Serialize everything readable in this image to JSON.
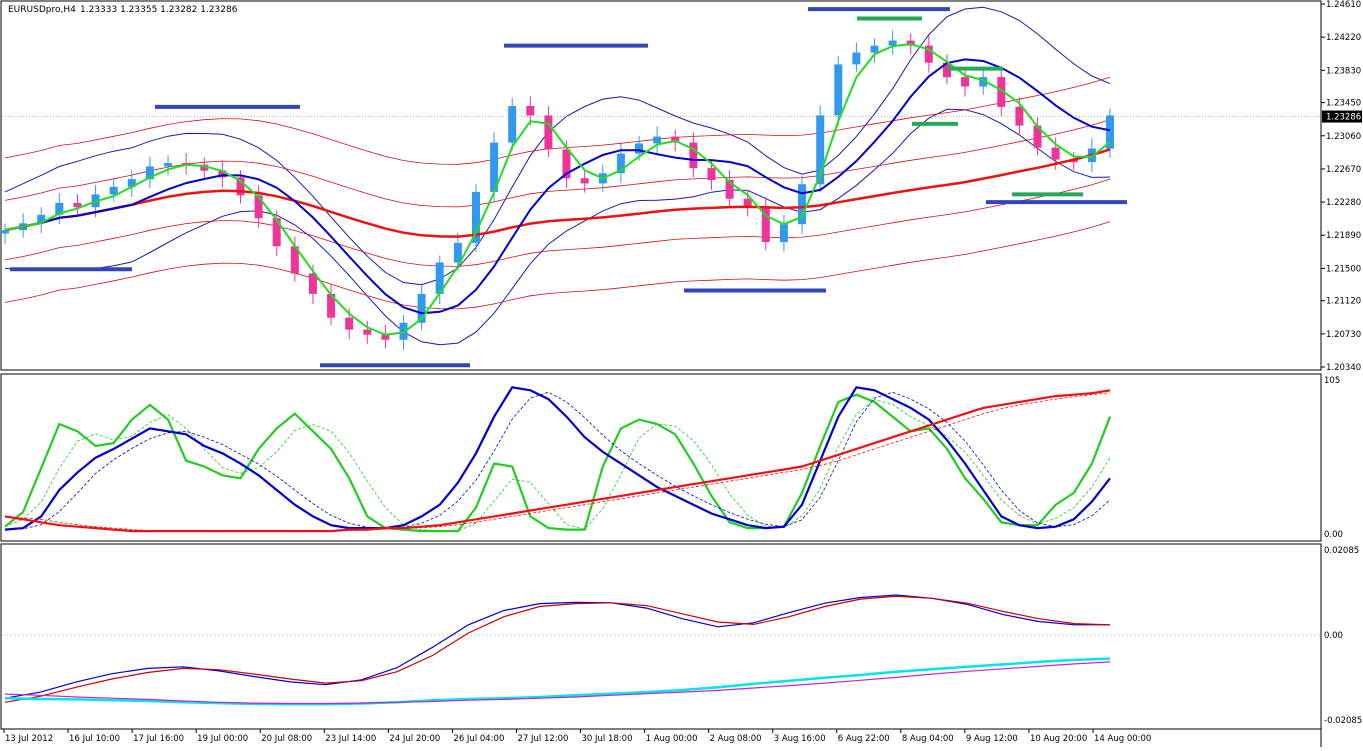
{
  "header": {
    "symbol": "EURUSDpro,H4",
    "ohlc": "1.23333 1.23355 1.23282 1.23286"
  },
  "chart_data": [
    {
      "type": "candlestick",
      "panel": "main",
      "y_ticks": [
        "1.24610",
        "1.24220",
        "1.23830",
        "1.23450",
        "1.23060",
        "1.22670",
        "1.22280",
        "1.21890",
        "1.21500",
        "1.21120",
        "1.20730",
        "1.20340"
      ],
      "ylim": [
        1.2034,
        1.2461
      ],
      "current_price": "1.23286",
      "close_path": [
        1.2195,
        1.2203,
        1.2213,
        1.2227,
        1.2222,
        1.2237,
        1.2246,
        1.2255,
        1.227,
        1.2274,
        1.2272,
        1.2265,
        1.2257,
        1.2236,
        1.2209,
        1.2176,
        1.2144,
        1.212,
        1.2092,
        1.2078,
        1.2072,
        1.2066,
        1.2086,
        1.212,
        1.2157,
        1.218,
        1.224,
        1.2298,
        1.2341,
        1.233,
        1.229,
        1.2256,
        1.225,
        1.2262,
        1.2285,
        1.2297,
        1.2305,
        1.2298,
        1.2268,
        1.2254,
        1.2232,
        1.2223,
        1.2181,
        1.2202,
        1.2249,
        1.233,
        1.239,
        1.2404,
        1.2412,
        1.2418,
        1.2412,
        1.2392,
        1.2375,
        1.2364,
        1.2375,
        1.234,
        1.2318,
        1.2292,
        1.2278,
        1.2275,
        1.2291,
        1.233
      ],
      "up_color": "#3399ee",
      "down_color": "#ee3399",
      "overlays": [
        {
          "name": "MA slow",
          "color": "#ee1111"
        },
        {
          "name": "MA mid",
          "color": "#0000cc"
        },
        {
          "name": "MA fast",
          "color": "#22dd22"
        }
      ]
    },
    {
      "type": "line",
      "panel": "oscillator",
      "y_ticks": [
        "105",
        "0.00"
      ],
      "ylim": [
        0,
        105
      ],
      "series": [
        {
          "color": "#22cc22",
          "values": [
            5,
            15,
            45,
            75,
            70,
            60,
            62,
            78,
            88,
            78,
            50,
            46,
            40,
            38,
            58,
            72,
            82,
            70,
            58,
            38,
            12,
            4,
            3,
            2,
            2,
            2,
            18,
            48,
            46,
            12,
            4,
            3,
            3,
            46,
            72,
            78,
            75,
            68,
            48,
            26,
            8,
            4,
            4,
            5,
            28,
            60,
            90,
            95,
            90,
            80,
            70,
            72,
            58,
            38,
            24,
            8,
            6,
            6,
            20,
            28,
            48,
            80
          ]
        },
        {
          "color": "#0000cc",
          "values": [
            3,
            4,
            12,
            30,
            42,
            52,
            58,
            65,
            72,
            70,
            68,
            60,
            55,
            48,
            40,
            30,
            20,
            12,
            6,
            4,
            4,
            4,
            6,
            12,
            20,
            35,
            55,
            80,
            100,
            98,
            92,
            80,
            66,
            56,
            48,
            40,
            32,
            26,
            20,
            14,
            10,
            6,
            4,
            5,
            20,
            50,
            80,
            100,
            98,
            92,
            86,
            78,
            64,
            48,
            30,
            12,
            6,
            4,
            5,
            10,
            22,
            38
          ]
        },
        {
          "color": "#ee1111",
          "values": [
            12,
            10,
            8,
            6,
            5,
            4,
            3,
            2,
            2,
            2,
            2,
            2,
            2,
            2,
            2,
            2,
            2,
            2,
            2,
            3,
            3,
            4,
            4,
            5,
            6,
            8,
            10,
            12,
            14,
            16,
            18,
            20,
            22,
            24,
            26,
            28,
            30,
            32,
            34,
            36,
            38,
            40,
            42,
            44,
            46,
            50,
            54,
            58,
            62,
            66,
            70,
            74,
            78,
            82,
            86,
            88,
            90,
            92,
            94,
            95,
            96,
            98
          ]
        }
      ]
    },
    {
      "type": "line",
      "panel": "macd",
      "y_ticks": [
        "0.02085",
        "0.00",
        "-0.02085"
      ],
      "ylim": [
        -0.02085,
        0.02085
      ],
      "series": [
        {
          "color": "#0000cc",
          "values": [
            -0.0155,
            -0.014,
            -0.0115,
            -0.0095,
            -0.0082,
            -0.0078,
            -0.0088,
            -0.0102,
            -0.0115,
            -0.0122,
            -0.011,
            -0.008,
            -0.003,
            0.0025,
            0.006,
            0.0077,
            0.008,
            0.0079,
            0.0066,
            0.004,
            0.002,
            0.003,
            0.0055,
            0.0078,
            0.0092,
            0.0098,
            0.009,
            0.0075,
            0.005,
            0.0033,
            0.0025,
            0.0025
          ]
        },
        {
          "color": "#cc0000",
          "values": [
            -0.0165,
            -0.015,
            -0.0128,
            -0.0108,
            -0.0092,
            -0.0082,
            -0.0085,
            -0.0096,
            -0.0108,
            -0.0118,
            -0.0112,
            -0.009,
            -0.005,
            0.0005,
            0.0045,
            0.007,
            0.0077,
            0.0079,
            0.0072,
            0.0052,
            0.0032,
            0.0026,
            0.0045,
            0.007,
            0.0088,
            0.0095,
            0.009,
            0.0078,
            0.0058,
            0.004,
            0.0028,
            0.0025
          ]
        },
        {
          "color": "#00e5ee",
          "values": [
            -0.0155,
            -0.0157,
            -0.0158,
            -0.016,
            -0.0162,
            -0.0165,
            -0.0167,
            -0.0169,
            -0.017,
            -0.017,
            -0.0168,
            -0.0165,
            -0.016,
            -0.0157,
            -0.0155,
            -0.0152,
            -0.0148,
            -0.0144,
            -0.014,
            -0.0135,
            -0.0128,
            -0.012,
            -0.0112,
            -0.0105,
            -0.0098,
            -0.009,
            -0.0084,
            -0.0078,
            -0.0072,
            -0.0066,
            -0.0061,
            -0.0058
          ]
        },
        {
          "color": "#cc22cc",
          "values": [
            -0.0145,
            -0.0148,
            -0.0152,
            -0.0155,
            -0.0158,
            -0.0162,
            -0.0165,
            -0.0167,
            -0.0168,
            -0.0168,
            -0.0167,
            -0.0165,
            -0.0163,
            -0.016,
            -0.0158,
            -0.0155,
            -0.0152,
            -0.0148,
            -0.0144,
            -0.014,
            -0.0136,
            -0.013,
            -0.0124,
            -0.0118,
            -0.0111,
            -0.0104,
            -0.0096,
            -0.0089,
            -0.0083,
            -0.0077,
            -0.0071,
            -0.0066
          ]
        }
      ]
    }
  ],
  "x_ticks": [
    "13 Jul 2012",
    "16 Jul 10:00",
    "17 Jul 16:00",
    "19 Jul 00:00",
    "20 Jul 08:00",
    "23 Jul 14:00",
    "24 Jul 20:00",
    "26 Jul 04:00",
    "27 Jul 12:00",
    "30 Jul 18:00",
    "1 Aug 00:00",
    "2 Aug 08:00",
    "3 Aug 16:00",
    "6 Aug 22:00",
    "8 Aug 04:00",
    "9 Aug 12:00",
    "10 Aug 20:00",
    "14 Aug 00:00"
  ],
  "levels": [
    {
      "color": "#3344bb",
      "price": 1.2149
    },
    {
      "color": "#3344bb",
      "price": 1.234
    },
    {
      "color": "#3344bb",
      "price": 1.2036
    },
    {
      "color": "#3344bb",
      "price": 1.2412
    },
    {
      "color": "#3344bb",
      "price": 1.2124
    },
    {
      "color": "#3344bb",
      "price": 1.2455
    },
    {
      "color": "#3344bb",
      "price": 1.2228
    },
    {
      "color": "#22aa55",
      "price": 1.2444
    },
    {
      "color": "#22aa55",
      "price": 1.2385
    },
    {
      "color": "#22aa55",
      "price": 1.232
    },
    {
      "color": "#22aa55",
      "price": 1.2237
    }
  ]
}
